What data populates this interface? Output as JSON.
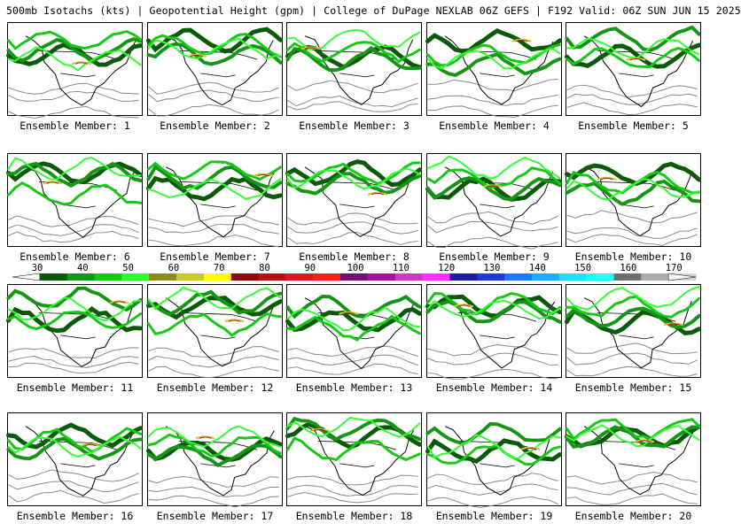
{
  "header": {
    "title": "500mb Isotachs (kts) | Geopotential Height (gpm) | College of DuPage NEXLAB   06Z GEFS | F192 Valid: 06Z SUN JUN 15 2025"
  },
  "colorbar": {
    "labels": [
      "30",
      "40",
      "50",
      "60",
      "70",
      "80",
      "90",
      "100",
      "110",
      "120",
      "130",
      "140",
      "150",
      "160",
      "170"
    ],
    "colors": [
      "#0a5a0a",
      "#149614",
      "#14c814",
      "#32ff32",
      "#8c8c1e",
      "#c8c832",
      "#ffff00",
      "#8c0a0a",
      "#b41414",
      "#d21e1e",
      "#ff1e1e",
      "#780a78",
      "#a014a0",
      "#c83cc8",
      "#ff32ff",
      "#1e1e96",
      "#1e3cd2",
      "#1e78ff",
      "#1eaaff",
      "#28dcff",
      "#1effff",
      "#6e6e6e",
      "#aaaaaa",
      "#d2d2d2"
    ]
  },
  "panels": [
    {
      "label": "Ensemble Member: 1"
    },
    {
      "label": "Ensemble Member: 2"
    },
    {
      "label": "Ensemble Member: 3"
    },
    {
      "label": "Ensemble Member: 4"
    },
    {
      "label": "Ensemble Member: 5"
    },
    {
      "label": "Ensemble Member: 6"
    },
    {
      "label": "Ensemble Member: 7"
    },
    {
      "label": "Ensemble Member: 8"
    },
    {
      "label": "Ensemble Member: 9"
    },
    {
      "label": "Ensemble Member: 10"
    },
    {
      "label": "Ensemble Member: 11"
    },
    {
      "label": "Ensemble Member: 12"
    },
    {
      "label": "Ensemble Member: 13"
    },
    {
      "label": "Ensemble Member: 14"
    },
    {
      "label": "Ensemble Member: 15"
    },
    {
      "label": "Ensemble Member: 16"
    },
    {
      "label": "Ensemble Member: 17"
    },
    {
      "label": "Ensemble Member: 18"
    },
    {
      "label": "Ensemble Member: 19"
    },
    {
      "label": "Ensemble Member: 20"
    }
  ]
}
